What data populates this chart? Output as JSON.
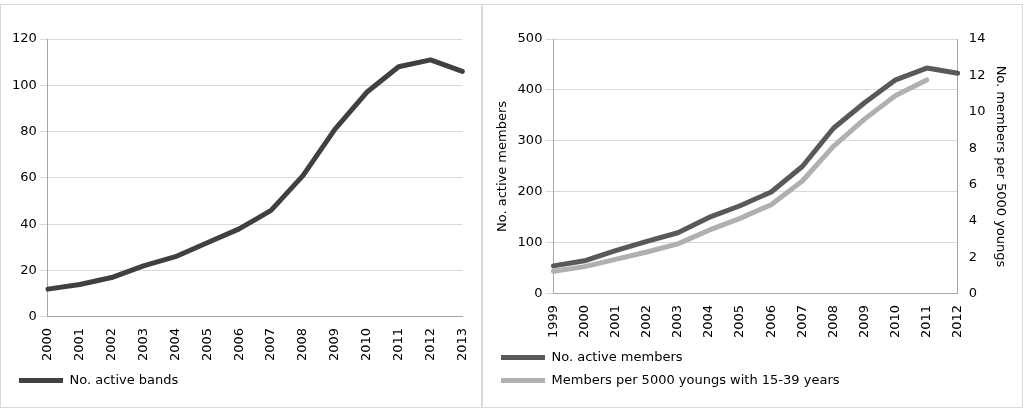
{
  "chart_data": [
    {
      "type": "line",
      "categories": [
        "2000",
        "2001",
        "2002",
        "2003",
        "2004",
        "2005",
        "2006",
        "2007",
        "2008",
        "2009",
        "2010",
        "2011",
        "2012",
        "2013"
      ],
      "series": [
        {
          "name": "No. active bands",
          "color": "#404040",
          "values": [
            12,
            14,
            17,
            22,
            26,
            32,
            38,
            46,
            61,
            81,
            97,
            108,
            111,
            106
          ]
        }
      ],
      "ylim": [
        0,
        120
      ],
      "yticks": [
        0,
        20,
        40,
        60,
        80,
        100,
        120
      ],
      "grid": "y",
      "legend": "bottom",
      "marker": "none"
    },
    {
      "type": "line",
      "categories": [
        "1999",
        "2000",
        "2001",
        "2002",
        "2003",
        "2004",
        "2005",
        "2006",
        "2007",
        "2008",
        "2009",
        "2010",
        "2011",
        "2012"
      ],
      "ylabel": "No. active members",
      "y2label": "No. members per 5000 youngs",
      "series": [
        {
          "name": "No. active members",
          "color": "#595959",
          "values": [
            55,
            65,
            85,
            103,
            120,
            150,
            173,
            200,
            250,
            325,
            375,
            420,
            443,
            433
          ]
        },
        {
          "name": "Members per 5000 youngs with 15-39 years",
          "color": "#b0b0b0",
          "axis": "y2",
          "values": [
            1.25,
            1.5,
            1.9,
            2.3,
            2.75,
            3.5,
            4.15,
            4.9,
            6.2,
            8.1,
            9.6,
            10.9,
            11.75,
            null
          ]
        }
      ],
      "ylim": [
        0,
        500
      ],
      "yticks": [
        0,
        100,
        200,
        300,
        400,
        500
      ],
      "y2lim": [
        0,
        14
      ],
      "y2ticks": [
        0,
        2,
        4,
        6,
        8,
        10,
        12,
        14
      ],
      "grid": "y",
      "legend": "bottom",
      "marker": "none"
    }
  ]
}
